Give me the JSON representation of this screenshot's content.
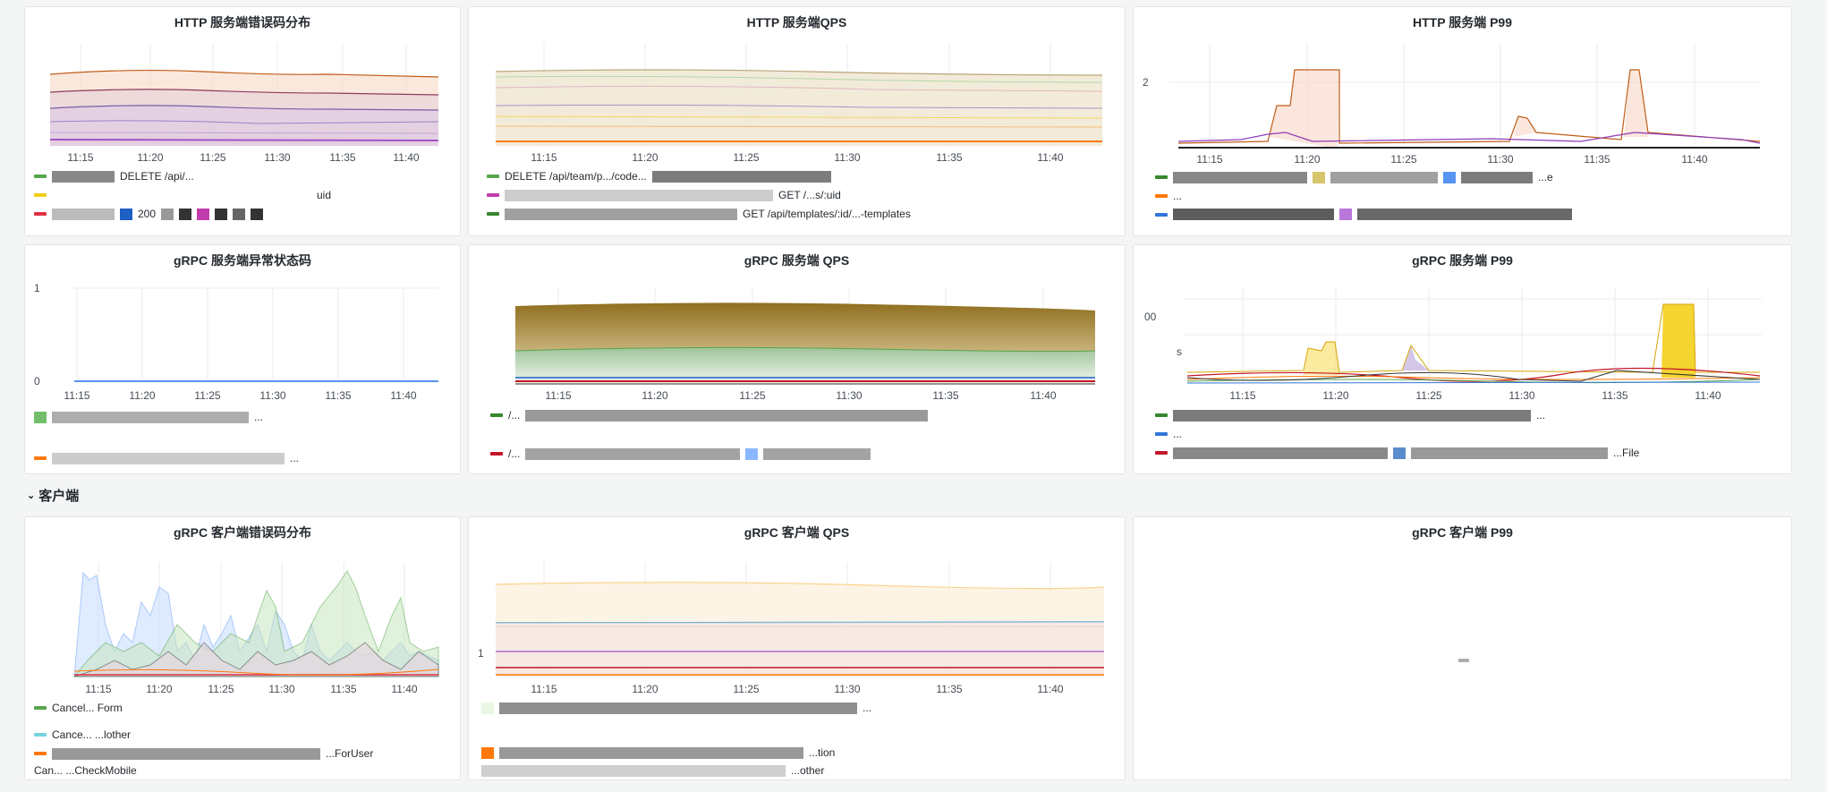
{
  "row_server": {
    "collapsed": false
  },
  "row_client": {
    "title": "客户端",
    "chevron_icon": "chevron-down-icon"
  },
  "panels": {
    "http_errors": {
      "title": "HTTP 服务端错误码分布",
      "x_ticks": [
        "11:15",
        "11:20",
        "11:25",
        "11:30",
        "11:35",
        "11:40"
      ],
      "legend": [
        "DELETE /api/...",
        "uid",
        "200"
      ]
    },
    "http_qps": {
      "title": "HTTP 服务端QPS",
      "x_ticks": [
        "11:15",
        "11:20",
        "11:25",
        "11:30",
        "11:35",
        "11:40"
      ],
      "legend": [
        "DELETE /api/team/p.../code...",
        "GET /...s/:uid",
        "GET /api/templates/:id/...-templates"
      ]
    },
    "http_p99": {
      "title": "HTTP 服务端 P99",
      "y_ticks": [
        "2"
      ],
      "x_ticks": [
        "11:15",
        "11:20",
        "11:25",
        "11:30",
        "11:35",
        "11:40"
      ],
      "legend": [
        "...e",
        "...",
        "..."
      ]
    },
    "grpc_status": {
      "title": "gRPC 服务端异常状态码",
      "y_ticks": [
        "1",
        "0"
      ],
      "x_ticks": [
        "11:15",
        "11:20",
        "11:25",
        "11:30",
        "11:35",
        "11:40"
      ],
      "legend": [
        "...",
        "..."
      ]
    },
    "grpc_qps": {
      "title": "gRPC 服务端 QPS",
      "x_ticks": [
        "11:15",
        "11:20",
        "11:25",
        "11:30",
        "11:35",
        "11:40"
      ],
      "legend": [
        "/...",
        "/..."
      ]
    },
    "grpc_p99": {
      "title": "gRPC 服务端 P99",
      "y_ticks": [
        "00",
        "s"
      ],
      "x_ticks": [
        "11:15",
        "11:20",
        "11:25",
        "11:30",
        "11:35",
        "11:40"
      ],
      "legend": [
        "...",
        "...",
        "...File"
      ]
    },
    "grpc_client_errors": {
      "title": "gRPC 客户端错误码分布",
      "x_ticks": [
        "11:15",
        "11:20",
        "11:25",
        "11:30",
        "11:35",
        "11:40"
      ],
      "legend": [
        "Cancel... Form",
        "Cance... ...lother",
        "...ForUser",
        "Can... ...CheckMobile"
      ]
    },
    "grpc_client_qps": {
      "title": "gRPC 客户端 QPS",
      "y_ticks": [
        "1"
      ],
      "x_ticks": [
        "11:15",
        "11:20",
        "11:25",
        "11:30",
        "11:35",
        "11:40"
      ],
      "legend": [
        "...",
        "...tion",
        "...other"
      ]
    },
    "grpc_client_p99": {
      "title": "gRPC 客户端 P99"
    }
  },
  "colors": {
    "green": "#56a64b",
    "yellow": "#f2cc0c",
    "blue": "#3274d9",
    "orange": "#ff780a",
    "red": "#e02f44",
    "purple": "#a352cc",
    "cyan": "#8ab8ff",
    "brown": "#b87333",
    "olive": "#8f6f1f"
  }
}
